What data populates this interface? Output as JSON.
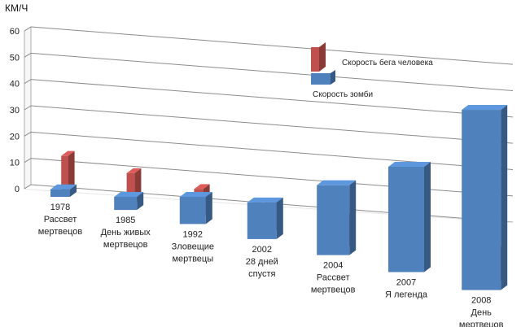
{
  "chart_data": {
    "type": "bar",
    "title": "",
    "unit_label": "КМ/Ч",
    "ylim": [
      0,
      60
    ],
    "yticks": [
      0,
      10,
      20,
      30,
      40,
      50,
      60
    ],
    "grid": true,
    "legend_position": "top-right",
    "categories": [
      [
        "1978",
        "Рассвет",
        "мертвецов"
      ],
      [
        "1985",
        "День живых",
        "мертвецов"
      ],
      [
        "1992",
        "Зловещие",
        "мертвецы"
      ],
      [
        "2002",
        "28 дней",
        "спустя"
      ],
      [
        "2004",
        "Рассвет",
        "мертвецов"
      ],
      [
        "2007",
        "Я легенда"
      ],
      [
        "2008",
        "День",
        "мертвецов"
      ]
    ],
    "series": [
      {
        "name": "Скорость бега человека",
        "color": "#c0504d",
        "values": [
          13,
          11,
          10,
          10,
          10,
          10,
          10
        ]
      },
      {
        "name": "Скорость зомби",
        "color": "#4f81bd",
        "values": [
          3,
          5,
          10,
          13,
          24,
          35,
          58
        ]
      }
    ]
  }
}
